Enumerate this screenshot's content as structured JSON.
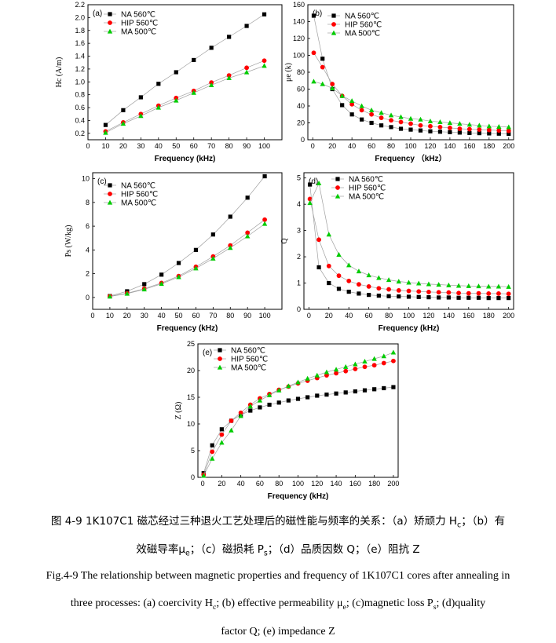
{
  "colors": {
    "NA": "#000000",
    "HIP": "#ff0000",
    "MA": "#00cc00",
    "line": "#a0a0a0"
  },
  "caption": {
    "cn_line1": "图 4-9 1K107C1 磁芯经过三种退火工艺处理后的磁性能与频率的关系：（a）矫顽力 H",
    "cn_line1_sub": "c",
    "cn_line1_tail": "；（b）有",
    "cn_line2_a": "效磁导率μ",
    "cn_line2_sub": "e",
    "cn_line2_b": "；（c）磁损耗 P",
    "cn_line2_sub2": "s",
    "cn_line2_c": "；（d）品质因数 Q；（e）阻抗 Z",
    "en_line1": "Fig.4-9 The relationship between magnetic properties and frequency of 1K107C1 cores after annealing in",
    "en_line2_a": "three processes:   (a) coercivity H",
    "en_line2_sub1": "c",
    "en_line2_b": ";   (b) effective permeability μ",
    "en_line2_sub2": "e",
    "en_line2_c": ";   (c)magnetic loss P",
    "en_line2_sub3": "s",
    "en_line2_d": ";   (d)quality",
    "en_line3": "factor Q;    (e) impedance Z"
  },
  "chart_data": [
    {
      "id": "a",
      "type": "line",
      "panel_label": "(a)",
      "xlabel": "Frequency (kHz)",
      "ylabel": "Hc (A/m)",
      "xlim": [
        0,
        110
      ],
      "ylim": [
        0.1,
        2.2
      ],
      "xticks": [
        "0",
        "10",
        "20",
        "30",
        "40",
        "50",
        "60",
        "70",
        "80",
        "90",
        "100"
      ],
      "yticks": [
        "0.2",
        "0.4",
        "0.6",
        "0.8",
        "1.0",
        "1.2",
        "1.4",
        "1.6",
        "1.8",
        "2.0",
        "2.2"
      ],
      "x": [
        10,
        20,
        30,
        40,
        50,
        60,
        70,
        80,
        90,
        100
      ],
      "series": [
        {
          "name": "NA 560℃",
          "values": [
            0.33,
            0.56,
            0.76,
            0.97,
            1.15,
            1.34,
            1.53,
            1.7,
            1.87,
            2.05
          ]
        },
        {
          "name": "HIP 560℃",
          "values": [
            0.23,
            0.37,
            0.5,
            0.63,
            0.75,
            0.86,
            0.99,
            1.1,
            1.22,
            1.33
          ]
        },
        {
          "name": "MA 500℃",
          "values": [
            0.21,
            0.35,
            0.47,
            0.6,
            0.71,
            0.83,
            0.95,
            1.06,
            1.15,
            1.25
          ]
        }
      ]
    },
    {
      "id": "b",
      "type": "line",
      "panel_label": "(b)",
      "xlabel": "Frequency （kHz）",
      "ylabel": "μe (k)",
      "xlim": [
        -5,
        205
      ],
      "ylim": [
        0,
        160
      ],
      "xticks": [
        "0",
        "20",
        "40",
        "60",
        "80",
        "100",
        "120",
        "140",
        "160",
        "180",
        "200"
      ],
      "yticks": [
        "0",
        "20",
        "40",
        "60",
        "80",
        "100",
        "120",
        "140",
        "160"
      ],
      "x": [
        1,
        10,
        20,
        30,
        40,
        50,
        60,
        70,
        80,
        90,
        100,
        110,
        120,
        130,
        140,
        150,
        160,
        170,
        180,
        190,
        200
      ],
      "series": [
        {
          "name": "NA 560℃",
          "values": [
            147,
            96,
            60,
            41,
            30,
            24,
            20,
            17,
            15,
            13,
            12,
            11,
            10,
            9.5,
            9,
            8.5,
            8,
            7.8,
            7.5,
            7.2,
            7
          ]
        },
        {
          "name": "HIP 560℃",
          "values": [
            103,
            86,
            66,
            52,
            42,
            35,
            30,
            26,
            23,
            21,
            19,
            17,
            16,
            15,
            14,
            13,
            12.5,
            12,
            11.5,
            11,
            10.5
          ]
        },
        {
          "name": "MA 500℃",
          "values": [
            69,
            66,
            61,
            52,
            46,
            40,
            35,
            32,
            29,
            27,
            25,
            24,
            22,
            21,
            20,
            19,
            18,
            17,
            16,
            15.5,
            15
          ]
        }
      ]
    },
    {
      "id": "c",
      "type": "line",
      "panel_label": "(c)",
      "xlabel": "Frequency (kHz)",
      "ylabel": "Ps (W/kg)",
      "xlim": [
        0,
        110
      ],
      "ylim": [
        -1,
        10.5
      ],
      "xticks": [
        "0",
        "10",
        "20",
        "30",
        "40",
        "50",
        "60",
        "70",
        "80",
        "90",
        "100"
      ],
      "yticks": [
        "0",
        "2",
        "4",
        "6",
        "8",
        "10"
      ],
      "x": [
        10,
        20,
        30,
        40,
        50,
        60,
        70,
        80,
        90,
        100
      ],
      "series": [
        {
          "name": "NA 560℃",
          "values": [
            0.12,
            0.52,
            1.12,
            1.92,
            2.9,
            4.0,
            5.3,
            6.8,
            8.4,
            10.2
          ]
        },
        {
          "name": "HIP 560℃",
          "values": [
            0.1,
            0.35,
            0.74,
            1.22,
            1.8,
            2.58,
            3.45,
            4.38,
            5.45,
            6.55
          ]
        },
        {
          "name": "MA 500℃",
          "values": [
            0.08,
            0.32,
            0.68,
            1.15,
            1.72,
            2.45,
            3.28,
            4.18,
            5.15,
            6.2
          ]
        }
      ]
    },
    {
      "id": "d",
      "type": "line",
      "panel_label": "(d)",
      "xlabel": "Frequency (kHz)",
      "ylabel": "Q",
      "xlim": [
        -5,
        205
      ],
      "ylim": [
        0,
        5.2
      ],
      "xticks": [
        "0",
        "20",
        "40",
        "60",
        "80",
        "100",
        "120",
        "140",
        "160",
        "180",
        "200"
      ],
      "yticks": [
        "0",
        "1",
        "2",
        "3",
        "4",
        "5"
      ],
      "x": [
        1,
        10,
        20,
        30,
        40,
        50,
        60,
        70,
        80,
        90,
        100,
        110,
        120,
        130,
        140,
        150,
        160,
        170,
        180,
        190,
        200
      ],
      "series": [
        {
          "name": "NA 560℃",
          "values": [
            4.75,
            1.6,
            1.0,
            0.78,
            0.67,
            0.6,
            0.55,
            0.52,
            0.5,
            0.49,
            0.48,
            0.47,
            0.46,
            0.45,
            0.45,
            0.44,
            0.44,
            0.44,
            0.43,
            0.43,
            0.43
          ]
        },
        {
          "name": "HIP 560℃",
          "values": [
            4.2,
            2.65,
            1.65,
            1.28,
            1.08,
            0.95,
            0.87,
            0.8,
            0.76,
            0.72,
            0.7,
            0.68,
            0.66,
            0.65,
            0.64,
            0.62,
            0.61,
            0.61,
            0.6,
            0.6,
            0.59
          ]
        },
        {
          "name": "MA 500℃",
          "values": [
            4.05,
            4.8,
            2.85,
            2.08,
            1.68,
            1.45,
            1.3,
            1.2,
            1.12,
            1.06,
            1.02,
            0.99,
            0.96,
            0.94,
            0.92,
            0.9,
            0.89,
            0.88,
            0.87,
            0.87,
            0.86
          ]
        }
      ]
    },
    {
      "id": "e",
      "type": "line",
      "panel_label": "(e)",
      "xlabel": "Frequency (kHz)",
      "ylabel": "Z (Ω)",
      "xlim": [
        -5,
        205
      ],
      "ylim": [
        0,
        25
      ],
      "xticks": [
        "0",
        "20",
        "40",
        "60",
        "80",
        "100",
        "120",
        "140",
        "160",
        "180",
        "200"
      ],
      "yticks": [
        "0",
        "5",
        "10",
        "15",
        "20",
        "25"
      ],
      "x": [
        1,
        10,
        20,
        30,
        40,
        50,
        60,
        70,
        80,
        90,
        100,
        110,
        120,
        130,
        140,
        150,
        160,
        170,
        180,
        190,
        200
      ],
      "series": [
        {
          "name": "NA 560℃",
          "values": [
            0.8,
            6.0,
            9.0,
            10.6,
            11.7,
            12.5,
            13.1,
            13.6,
            14.0,
            14.4,
            14.7,
            15.0,
            15.3,
            15.5,
            15.7,
            15.9,
            16.1,
            16.3,
            16.5,
            16.7,
            16.9
          ]
        },
        {
          "name": "HIP 560℃",
          "values": [
            0.5,
            4.8,
            8.0,
            10.6,
            12.1,
            13.6,
            14.8,
            15.6,
            16.4,
            17.0,
            17.6,
            18.1,
            18.6,
            19.1,
            19.5,
            19.9,
            20.3,
            20.7,
            21.0,
            21.4,
            21.8
          ]
        },
        {
          "name": "MA 500℃",
          "values": [
            0.3,
            3.5,
            6.5,
            8.8,
            11.5,
            13.3,
            14.4,
            15.4,
            16.3,
            17.1,
            17.8,
            18.5,
            19.1,
            19.7,
            20.2,
            20.7,
            21.2,
            21.7,
            22.2,
            22.7,
            23.4
          ]
        }
      ]
    }
  ]
}
